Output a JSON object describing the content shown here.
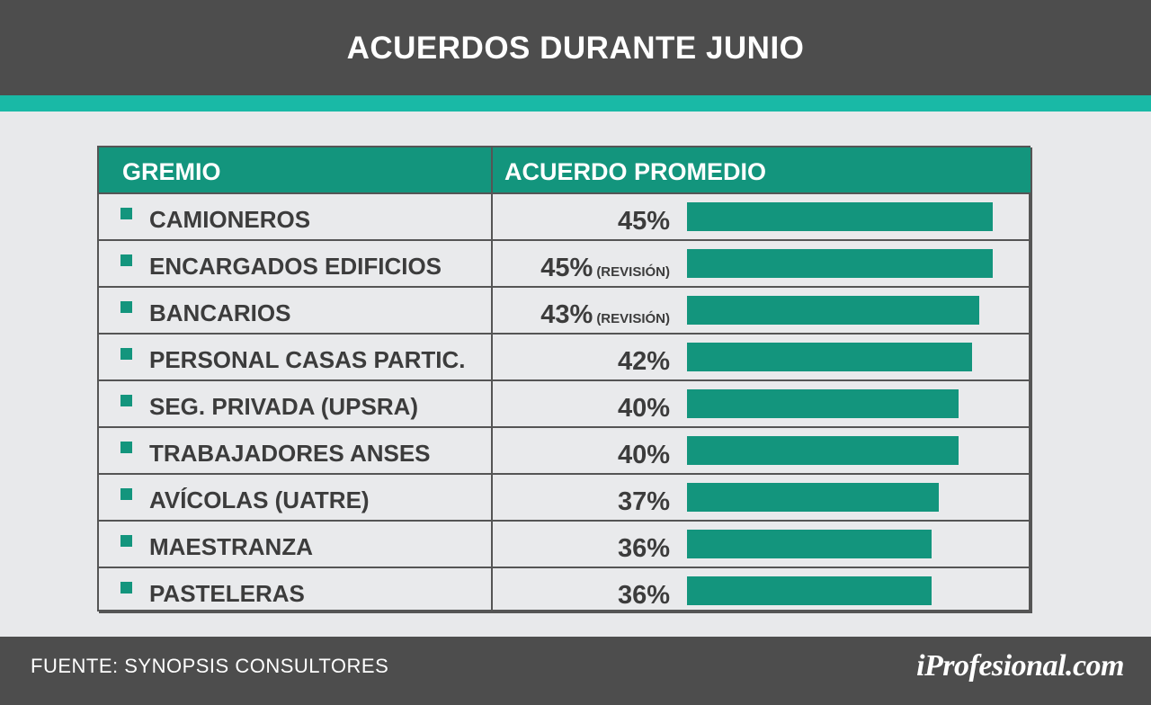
{
  "header": {
    "title": "ACUERDOS DURANTE JUNIO"
  },
  "colors": {
    "header_bg": "#4d4d4d",
    "accent": "#19b9a6",
    "bar": "#13957d",
    "text": "#3c3c3c"
  },
  "table": {
    "col_gremio": "GREMIO",
    "col_acuerdo": "ACUERDO PROMEDIO",
    "rows": [
      {
        "name": "CAMIONEROS",
        "pct": "45%",
        "note": ""
      },
      {
        "name": "ENCARGADOS EDIFICIOS",
        "pct": "45%",
        "note": "(REVISIÓN)"
      },
      {
        "name": "BANCARIOS",
        "pct": "43%",
        "note": "(REVISIÓN)"
      },
      {
        "name": "PERSONAL CASAS PARTIC.",
        "pct": "42%",
        "note": ""
      },
      {
        "name": "SEG. PRIVADA (UPSRA)",
        "pct": "40%",
        "note": ""
      },
      {
        "name": "TRABAJADORES ANSES",
        "pct": "40%",
        "note": ""
      },
      {
        "name": "AVÍCOLAS (UATRE)",
        "pct": "37%",
        "note": ""
      },
      {
        "name": "MAESTRANZA",
        "pct": "36%",
        "note": ""
      },
      {
        "name": "PASTELERAS",
        "pct": "36%",
        "note": ""
      }
    ]
  },
  "chart_data": {
    "type": "bar",
    "title": "ACUERDOS DURANTE JUNIO",
    "categories": [
      "CAMIONEROS",
      "ENCARGADOS EDIFICIOS",
      "BANCARIOS",
      "PERSONAL CASAS PARTIC.",
      "SEG. PRIVADA (UPSRA)",
      "TRABAJADORES ANSES",
      "AVÍCOLAS (UATRE)",
      "MAESTRANZA",
      "PASTELERAS"
    ],
    "values": [
      45,
      45,
      43,
      42,
      40,
      40,
      37,
      36,
      36
    ],
    "orientation": "horizontal",
    "xlabel": "ACUERDO PROMEDIO",
    "ylabel": "GREMIO",
    "grid": false
  },
  "footer": {
    "source": "FUENTE: SYNOPSIS CONSULTORES",
    "brand": "iProfesional.com"
  }
}
